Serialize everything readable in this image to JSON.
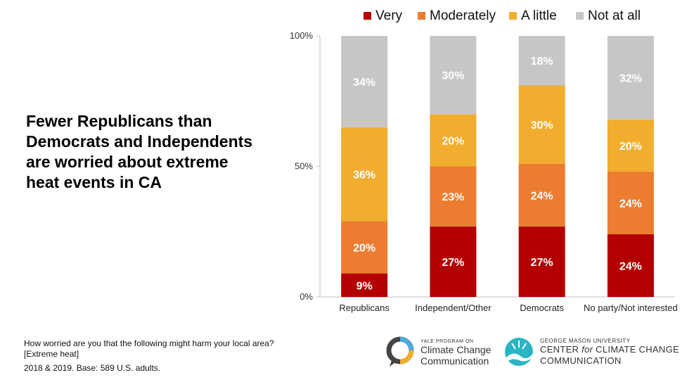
{
  "headline": {
    "lines": [
      "Fewer Republicans than",
      "Democrats and Independents",
      "are worried about extreme",
      "heat events in CA"
    ]
  },
  "chart_data": {
    "type": "bar",
    "stacked": true,
    "categories": [
      "Republicans",
      "Independent/Other",
      "Democrats",
      "No party/Not interested"
    ],
    "series": [
      {
        "name": "Very",
        "color": "#b30000",
        "values": [
          9,
          27,
          27,
          24
        ],
        "labels": [
          "9%",
          "27%",
          "27%",
          "24%"
        ]
      },
      {
        "name": "Moderately",
        "color": "#ec7c30",
        "values": [
          20,
          23,
          24,
          24
        ],
        "labels": [
          "20%",
          "23%",
          "24%",
          "24%"
        ]
      },
      {
        "name": "A little",
        "color": "#f0ad2e",
        "values": [
          36,
          20,
          30,
          20
        ],
        "labels": [
          "36%",
          "20%",
          "30%",
          "20%"
        ]
      },
      {
        "name": "Not at all",
        "color": "#c6c6c6",
        "values": [
          34,
          30,
          18,
          32
        ],
        "labels": [
          "34%",
          "30%",
          "18%",
          "32%"
        ]
      }
    ],
    "yticks": [
      0,
      50,
      100
    ],
    "ytick_labels": [
      "0%",
      "50%",
      "100%"
    ],
    "ylim": [
      0,
      100
    ],
    "legend_position": "top",
    "grid": false
  },
  "footnote": {
    "question_lines": [
      "How worried are you that the following might harm your local area?",
      "[Extreme heat]"
    ],
    "base": "2018 & 2019. Base: 589 U.S. adults."
  },
  "logos": {
    "yale": {
      "small": "YALE PROGRAM ON",
      "line1": "Climate Change",
      "line2": "Communication"
    },
    "gmu": {
      "small": "GEORGE MASON UNIVERSITY",
      "line1_a": "CENTER",
      "line1_b": "for",
      "line1_c": "CLIMATE CHANGE",
      "line2": "COMMUNICATION"
    }
  }
}
